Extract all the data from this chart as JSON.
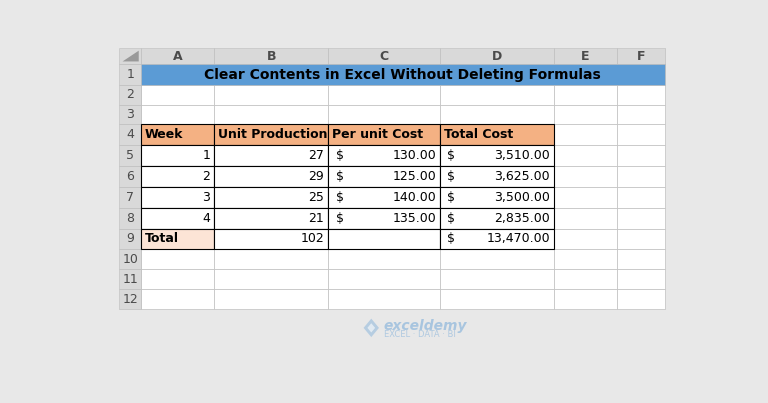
{
  "title": "Clear Contents in Excel Without Deleting Formulas",
  "title_bg": "#5B9BD5",
  "title_text_color": "#000000",
  "col_headers": [
    "A",
    "B",
    "C",
    "D",
    "E",
    "F"
  ],
  "row_numbers": [
    "1",
    "2",
    "3",
    "4",
    "5",
    "6",
    "7",
    "8",
    "9",
    "10",
    "11",
    "12"
  ],
  "header_bg": "#D9D9D9",
  "spreadsheet_bg": "#FFFFFF",
  "grid_color": "#BFBFBF",
  "table_header_bg": "#F4B183",
  "table_data_bg": "#FFFFFF",
  "table_total_bg": "#FCE4D6",
  "col_labels": [
    "Week",
    "Unit Production",
    "Per unit Cost",
    "Total Cost"
  ],
  "data_rows": [
    [
      "1",
      "27",
      "130.00",
      "3,510.00"
    ],
    [
      "2",
      "29",
      "125.00",
      "3,625.00"
    ],
    [
      "3",
      "25",
      "140.00",
      "3,500.00"
    ],
    [
      "4",
      "21",
      "135.00",
      "2,835.00"
    ]
  ],
  "total_row": [
    "Total",
    "102",
    "",
    "13,470.00"
  ],
  "logo_color": "#5B9BD5",
  "logo_text": "exceldemy",
  "logo_subtext": "EXCEL · DATA · BI"
}
